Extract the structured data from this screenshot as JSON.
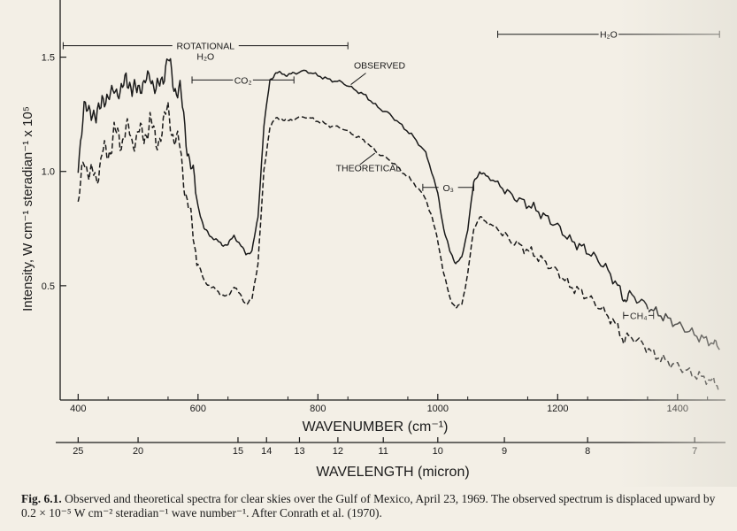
{
  "chart_data": {
    "type": "line",
    "xlabel": "WAVENUMBER (cm⁻¹)",
    "x2label": "WAVELENGTH (micron)",
    "ylabel": "Intensity, W cm⁻¹ steradian⁻¹ x 10⁵",
    "xlim": [
      370,
      1480
    ],
    "ylim": [
      0,
      1.75
    ],
    "x_ticks": [
      400,
      600,
      800,
      1000,
      1200,
      1400
    ],
    "y_ticks": [
      0.5,
      1.0,
      1.5
    ],
    "y_tick_labels": [
      "0.5",
      "1.0",
      "1.5"
    ],
    "wavelength_ticks": [
      25,
      20,
      15,
      14,
      13,
      12,
      11,
      10,
      9,
      8,
      7
    ],
    "series": [
      {
        "name": "OBSERVED",
        "style": "solid",
        "x": [
          400,
          410,
          420,
          430,
          440,
          450,
          460,
          470,
          480,
          490,
          500,
          510,
          520,
          530,
          540,
          550,
          560,
          570,
          580,
          590,
          600,
          610,
          620,
          630,
          640,
          650,
          660,
          670,
          680,
          690,
          700,
          710,
          720,
          730,
          740,
          750,
          760,
          780,
          800,
          820,
          840,
          860,
          880,
          900,
          920,
          940,
          960,
          980,
          990,
          1000,
          1010,
          1020,
          1030,
          1040,
          1050,
          1060,
          1070,
          1080,
          1100,
          1120,
          1140,
          1160,
          1180,
          1200,
          1220,
          1240,
          1260,
          1280,
          1300,
          1310,
          1320,
          1340,
          1360,
          1380,
          1400,
          1420,
          1440,
          1460,
          1470
        ],
        "values": [
          1.05,
          1.25,
          1.3,
          1.2,
          1.35,
          1.28,
          1.4,
          1.3,
          1.45,
          1.32,
          1.4,
          1.35,
          1.45,
          1.33,
          1.42,
          1.48,
          1.38,
          1.35,
          1.15,
          1.0,
          0.85,
          0.75,
          0.72,
          0.7,
          0.68,
          0.68,
          0.72,
          0.68,
          0.64,
          0.65,
          0.8,
          1.2,
          1.4,
          1.43,
          1.43,
          1.42,
          1.43,
          1.44,
          1.42,
          1.4,
          1.39,
          1.36,
          1.33,
          1.28,
          1.25,
          1.2,
          1.15,
          1.08,
          1.0,
          0.9,
          0.75,
          0.65,
          0.6,
          0.62,
          0.75,
          0.95,
          1.0,
          0.98,
          0.95,
          0.9,
          0.87,
          0.84,
          0.8,
          0.76,
          0.7,
          0.67,
          0.63,
          0.58,
          0.5,
          0.44,
          0.46,
          0.43,
          0.39,
          0.36,
          0.33,
          0.3,
          0.27,
          0.25,
          0.22
        ]
      },
      {
        "name": "THEORETICAL",
        "style": "dashed",
        "x": [
          400,
          410,
          420,
          430,
          440,
          450,
          460,
          470,
          480,
          490,
          500,
          510,
          520,
          530,
          540,
          550,
          560,
          570,
          580,
          590,
          600,
          610,
          620,
          630,
          640,
          650,
          660,
          670,
          680,
          690,
          700,
          710,
          720,
          730,
          740,
          750,
          760,
          780,
          800,
          820,
          840,
          860,
          880,
          900,
          920,
          940,
          960,
          980,
          990,
          1000,
          1010,
          1020,
          1030,
          1040,
          1050,
          1060,
          1070,
          1080,
          1100,
          1120,
          1140,
          1160,
          1180,
          1200,
          1220,
          1240,
          1260,
          1280,
          1300,
          1310,
          1320,
          1340,
          1360,
          1380,
          1400,
          1420,
          1440,
          1460,
          1470
        ],
        "values": [
          0.85,
          1.05,
          1.0,
          0.95,
          1.1,
          1.05,
          1.2,
          1.1,
          1.22,
          1.1,
          1.2,
          1.12,
          1.25,
          1.1,
          1.2,
          1.26,
          1.15,
          1.1,
          0.9,
          0.75,
          0.6,
          0.52,
          0.5,
          0.48,
          0.46,
          0.45,
          0.5,
          0.46,
          0.42,
          0.44,
          0.6,
          1.0,
          1.2,
          1.23,
          1.23,
          1.22,
          1.23,
          1.24,
          1.22,
          1.2,
          1.19,
          1.16,
          1.13,
          1.08,
          1.05,
          1.0,
          0.95,
          0.88,
          0.8,
          0.7,
          0.55,
          0.45,
          0.4,
          0.42,
          0.55,
          0.75,
          0.8,
          0.78,
          0.75,
          0.7,
          0.67,
          0.64,
          0.6,
          0.56,
          0.5,
          0.47,
          0.43,
          0.38,
          0.32,
          0.26,
          0.28,
          0.25,
          0.2,
          0.17,
          0.15,
          0.12,
          0.1,
          0.08,
          0.05
        ]
      }
    ],
    "annotations": [
      {
        "text": "ROTATIONAL",
        "text2": "H₂O",
        "x_range": [
          375,
          850
        ],
        "y": 1.55
      },
      {
        "text": "CO₂",
        "x_range": [
          590,
          760
        ],
        "y": 1.4
      },
      {
        "text": "O₃",
        "x_range": [
          975,
          1060
        ],
        "y": 0.93
      },
      {
        "text": "H₂O",
        "x_range": [
          1100,
          1470
        ],
        "y": 1.6
      },
      {
        "text": "CH₄",
        "x_range": [
          1310,
          1360
        ],
        "y": 0.37
      }
    ]
  },
  "caption": {
    "label": "Fig. 6.1.",
    "text": "Observed and theoretical spectra for clear skies over the Gulf of Mexico, April 23, 1969. The observed spectrum is displaced upward by 0.2 × 10⁻⁵ W cm⁻² steradian⁻¹ wave number⁻¹. After Conrath et al. (1970)."
  },
  "colors": {
    "paper": "#f3efe6",
    "ink": "#1a1a1a"
  }
}
